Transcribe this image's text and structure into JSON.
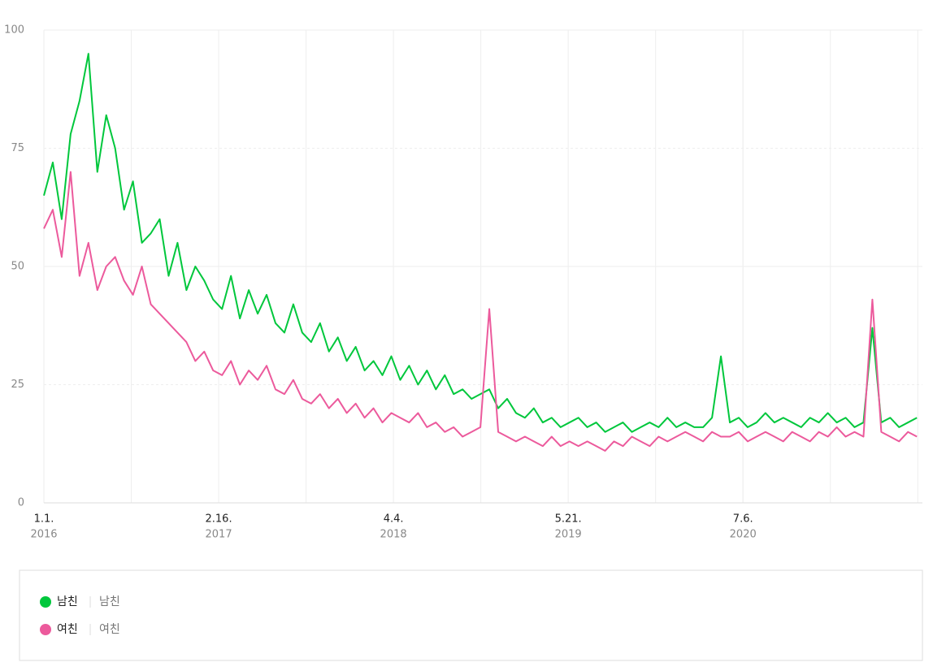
{
  "chart_data": {
    "type": "line",
    "x": [
      0,
      21,
      42,
      63,
      84,
      105,
      126,
      147,
      168,
      189,
      210,
      231,
      252,
      273,
      294,
      315,
      336,
      357,
      378,
      399,
      420,
      441,
      462,
      483,
      504,
      525,
      546,
      567,
      588,
      609,
      630,
      651,
      672,
      693,
      714,
      735,
      756,
      777,
      798,
      819,
      840,
      861,
      882,
      903,
      924,
      945,
      966,
      987,
      1008,
      1029,
      1050,
      1071,
      1092,
      1113,
      1134,
      1155,
      1176,
      1197,
      1218,
      1239,
      1260,
      1281,
      1302,
      1323,
      1344,
      1365,
      1386,
      1407,
      1428,
      1449,
      1470,
      1491,
      1512,
      1533,
      1554,
      1575,
      1596,
      1617,
      1638,
      1659,
      1680,
      1701,
      1722,
      1743,
      1764,
      1785,
      1806,
      1827,
      1848,
      1869,
      1890,
      1911,
      1932,
      1953,
      1974,
      1995,
      2016,
      2037,
      2058
    ],
    "xlim": [
      0,
      2071
    ],
    "xticks": [
      {
        "value": 0,
        "label": "1.1.",
        "sublabel": "2016"
      },
      {
        "value": 412,
        "label": "2.16.",
        "sublabel": "2017"
      },
      {
        "value": 824,
        "label": "4.4.",
        "sublabel": "2018"
      },
      {
        "value": 1236,
        "label": "5.21.",
        "sublabel": "2019"
      },
      {
        "value": 1648,
        "label": "7.6.",
        "sublabel": "2020"
      }
    ],
    "ylim": [
      0,
      100
    ],
    "yticks": [
      0,
      25,
      50,
      75,
      100
    ],
    "grid": true,
    "series": [
      {
        "name": "남친",
        "keyword": "남친",
        "color": "#00c73c",
        "values": [
          65,
          72,
          60,
          78,
          85,
          95,
          70,
          82,
          75,
          62,
          68,
          55,
          57,
          60,
          48,
          55,
          45,
          50,
          47,
          43,
          41,
          48,
          39,
          45,
          40,
          44,
          38,
          36,
          42,
          36,
          34,
          38,
          32,
          35,
          30,
          33,
          28,
          30,
          27,
          31,
          26,
          29,
          25,
          28,
          24,
          27,
          23,
          24,
          22,
          23,
          24,
          20,
          22,
          19,
          18,
          20,
          17,
          18,
          16,
          17,
          18,
          16,
          17,
          15,
          16,
          17,
          15,
          16,
          17,
          16,
          18,
          16,
          17,
          16,
          16,
          18,
          31,
          17,
          18,
          16,
          17,
          19,
          17,
          18,
          17,
          16,
          18,
          17,
          19,
          17,
          18,
          16,
          17,
          37,
          17,
          18,
          16,
          17,
          18
        ]
      },
      {
        "name": "여친",
        "keyword": "여친",
        "color": "#ec5a9c",
        "values": [
          58,
          62,
          52,
          70,
          48,
          55,
          45,
          50,
          52,
          47,
          44,
          50,
          42,
          40,
          38,
          36,
          34,
          30,
          32,
          28,
          27,
          30,
          25,
          28,
          26,
          29,
          24,
          23,
          26,
          22,
          21,
          23,
          20,
          22,
          19,
          21,
          18,
          20,
          17,
          19,
          18,
          17,
          19,
          16,
          17,
          15,
          16,
          14,
          15,
          16,
          41,
          15,
          14,
          13,
          14,
          13,
          12,
          14,
          12,
          13,
          12,
          13,
          12,
          11,
          13,
          12,
          14,
          13,
          12,
          14,
          13,
          14,
          15,
          14,
          13,
          15,
          14,
          14,
          15,
          13,
          14,
          15,
          14,
          13,
          15,
          14,
          13,
          15,
          14,
          16,
          14,
          15,
          14,
          43,
          15,
          14,
          13,
          15,
          14
        ]
      }
    ]
  }
}
